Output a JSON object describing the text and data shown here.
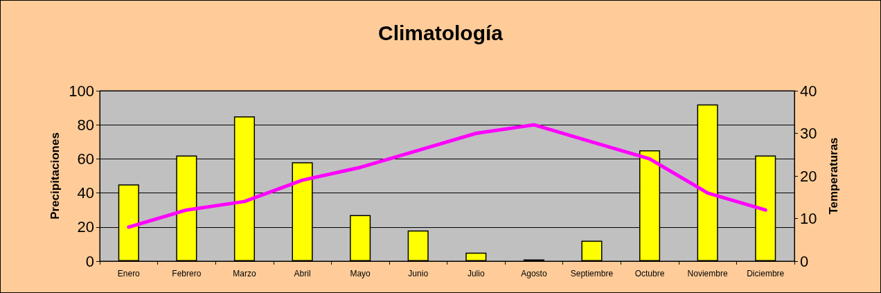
{
  "chart_data": {
    "type": "bar",
    "title": "Climatología",
    "ylabel": "Precipitaciones",
    "y2label": "Temperaturas",
    "categories": [
      "Enero",
      "Febrero",
      "Marzo",
      "Abril",
      "Mayo",
      "Junio",
      "Julio",
      "Agosto",
      "Septiembre",
      "Octubre",
      "Noviembre",
      "Diciembre"
    ],
    "series": [
      {
        "color": "#ffff00",
        "values": [
          45,
          62,
          85,
          58,
          27,
          18,
          5,
          1,
          12,
          65,
          92,
          62
        ]
      },
      {
        "type": "line",
        "axis": "y2",
        "color": "#ff00ff",
        "values": [
          8,
          12,
          14,
          19,
          22,
          26,
          30,
          32,
          28,
          24,
          16,
          12
        ]
      }
    ],
    "ylim": [
      0,
      100
    ],
    "yticks": [
      0,
      20,
      40,
      60,
      80,
      100
    ],
    "y2lim": [
      0,
      40
    ],
    "y2ticks": [
      0,
      10,
      20,
      30,
      40
    ],
    "grid": "y",
    "marker": "none",
    "line_style": "solid"
  }
}
